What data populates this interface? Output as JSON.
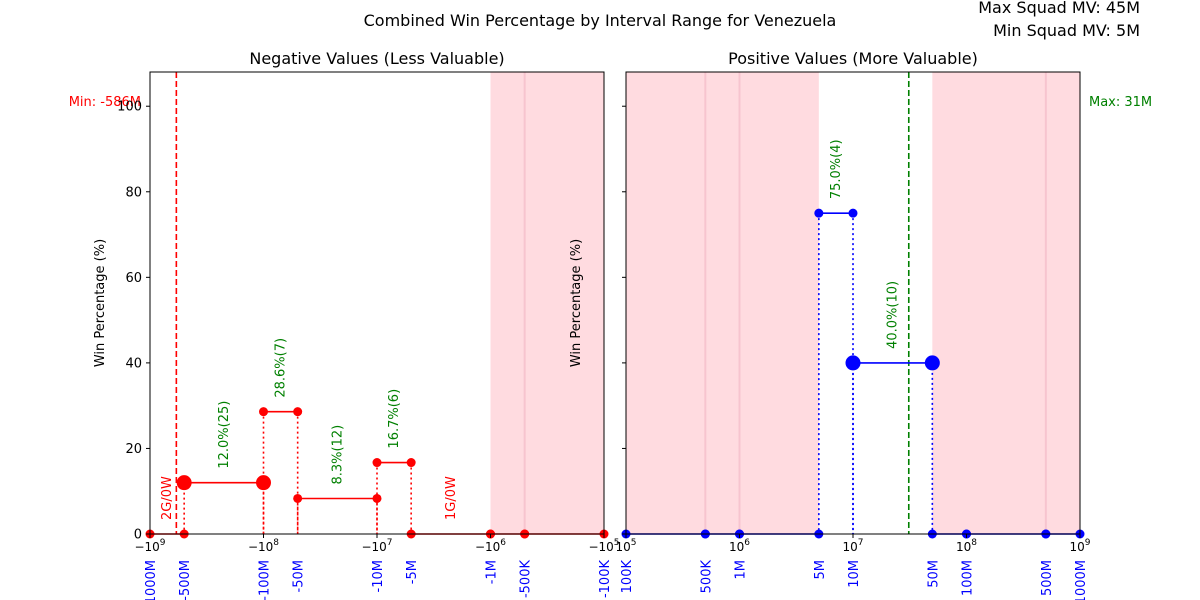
{
  "figure": {
    "suptitle": "Combined Win Percentage by Interval Range for Venezuela",
    "max_squad": "Max Squad MV: 45M",
    "min_squad": "Min Squad MV: 5M"
  },
  "colors": {
    "neg": "#ff0000",
    "pos": "#0000ff",
    "pct": "#008000",
    "shade": "#ffdbe0",
    "tickblue": "#0000ff"
  },
  "chart_data": [
    {
      "type": "line",
      "title": "Negative Values (Less Valuable)",
      "xlabel": "",
      "ylabel": "Win Percentage (%)",
      "x_scale": "symlog",
      "xlim": [
        -1000000000,
        -100000
      ],
      "ylim": [
        0,
        108
      ],
      "grid": false,
      "y_ticks": [
        0,
        20,
        40,
        60,
        80,
        100
      ],
      "x_ticks": [
        {
          "value": -1000000000,
          "label": "−10^9"
        },
        {
          "value": -100000000,
          "label": "−10^8"
        },
        {
          "value": -10000000,
          "label": "−10^7"
        },
        {
          "value": -1000000,
          "label": "−10^6"
        },
        {
          "value": -100000,
          "label": "−10^5"
        }
      ],
      "interval_ticks": [
        {
          "value": -1000000000,
          "label": "-1000M"
        },
        {
          "value": -500000000,
          "label": "-500M"
        },
        {
          "value": -100000000,
          "label": "-100M"
        },
        {
          "value": -50000000,
          "label": "-50M"
        },
        {
          "value": -10000000,
          "label": "-10M"
        },
        {
          "value": -5000000,
          "label": "-5M"
        },
        {
          "value": -1000000,
          "label": "-1M"
        },
        {
          "value": -500000,
          "label": "-500K"
        },
        {
          "value": -100000,
          "label": "-100K"
        }
      ],
      "shaded_ranges": [
        [
          -1000000,
          -100000
        ]
      ],
      "shade_lines": [
        -500000
      ],
      "ref_line": {
        "x": -586000000,
        "label": "Min: -586M",
        "color": "#ff0000"
      },
      "segments": [
        {
          "x0": -1000000000,
          "x1": -500000000,
          "y": 0,
          "label": "2G/0W",
          "label_color": "#ff0000",
          "big": false
        },
        {
          "x0": -500000000,
          "x1": -100000000,
          "y": 12.0,
          "label": "12.0%(25)",
          "label_color": "#008000",
          "big": true
        },
        {
          "x0": -100000000,
          "x1": -50000000,
          "y": 28.6,
          "label": "28.6%(7)",
          "label_color": "#008000",
          "big": false
        },
        {
          "x0": -50000000,
          "x1": -10000000,
          "y": 8.3,
          "label": "8.3%(12)",
          "label_color": "#008000",
          "big": false
        },
        {
          "x0": -10000000,
          "x1": -5000000,
          "y": 16.7,
          "label": "16.7%(6)",
          "label_color": "#008000",
          "big": false
        },
        {
          "x0": -5000000,
          "x1": -1000000,
          "y": 0,
          "label": "1G/0W",
          "label_color": "#ff0000",
          "big": false
        },
        {
          "x0": -1000000,
          "x1": -500000,
          "y": 0,
          "label": "",
          "label_color": "#ff0000",
          "big": false
        },
        {
          "x0": -500000,
          "x1": -100000,
          "y": 0,
          "label": "",
          "label_color": "#ff0000",
          "big": false
        }
      ]
    },
    {
      "type": "line",
      "title": "Positive Values (More Valuable)",
      "xlabel": "",
      "ylabel": "Win Percentage (%)",
      "x_scale": "log",
      "xlim": [
        100000,
        1000000000
      ],
      "ylim": [
        0,
        108
      ],
      "grid": false,
      "y_ticks": [],
      "x_ticks": [
        {
          "value": 100000,
          "label": "10^5"
        },
        {
          "value": 1000000,
          "label": "10^6"
        },
        {
          "value": 10000000,
          "label": "10^7"
        },
        {
          "value": 100000000,
          "label": "10^8"
        },
        {
          "value": 1000000000,
          "label": "10^9"
        }
      ],
      "interval_ticks": [
        {
          "value": 100000,
          "label": "100K"
        },
        {
          "value": 500000,
          "label": "500K"
        },
        {
          "value": 1000000,
          "label": "1M"
        },
        {
          "value": 5000000,
          "label": "5M"
        },
        {
          "value": 10000000,
          "label": "10M"
        },
        {
          "value": 50000000,
          "label": "50M"
        },
        {
          "value": 100000000,
          "label": "100M"
        },
        {
          "value": 500000000,
          "label": "500M"
        },
        {
          "value": 1000000000,
          "label": "1000M"
        }
      ],
      "shaded_ranges": [
        [
          100000,
          5000000
        ],
        [
          50000000,
          1000000000
        ]
      ],
      "shade_lines": [
        500000,
        1000000,
        500000000
      ],
      "ref_line": {
        "x": 31000000,
        "label": "Max: 31M",
        "color": "#008000"
      },
      "segments": [
        {
          "x0": 100000,
          "x1": 500000,
          "y": 0,
          "label": "",
          "label_color": "#008000",
          "big": false
        },
        {
          "x0": 500000,
          "x1": 1000000,
          "y": 0,
          "label": "",
          "label_color": "#008000",
          "big": false
        },
        {
          "x0": 1000000,
          "x1": 5000000,
          "y": 0,
          "label": "",
          "label_color": "#008000",
          "big": false
        },
        {
          "x0": 5000000,
          "x1": 10000000,
          "y": 75.0,
          "label": "75.0%(4)",
          "label_color": "#008000",
          "big": false
        },
        {
          "x0": 10000000,
          "x1": 50000000,
          "y": 40.0,
          "label": "40.0%(10)",
          "label_color": "#008000",
          "big": true
        },
        {
          "x0": 50000000,
          "x1": 100000000,
          "y": 0,
          "label": "",
          "label_color": "#008000",
          "big": false
        },
        {
          "x0": 100000000,
          "x1": 500000000,
          "y": 0,
          "label": "",
          "label_color": "#008000",
          "big": false
        },
        {
          "x0": 500000000,
          "x1": 1000000000,
          "y": 0,
          "label": "",
          "label_color": "#008000",
          "big": false
        }
      ]
    }
  ]
}
